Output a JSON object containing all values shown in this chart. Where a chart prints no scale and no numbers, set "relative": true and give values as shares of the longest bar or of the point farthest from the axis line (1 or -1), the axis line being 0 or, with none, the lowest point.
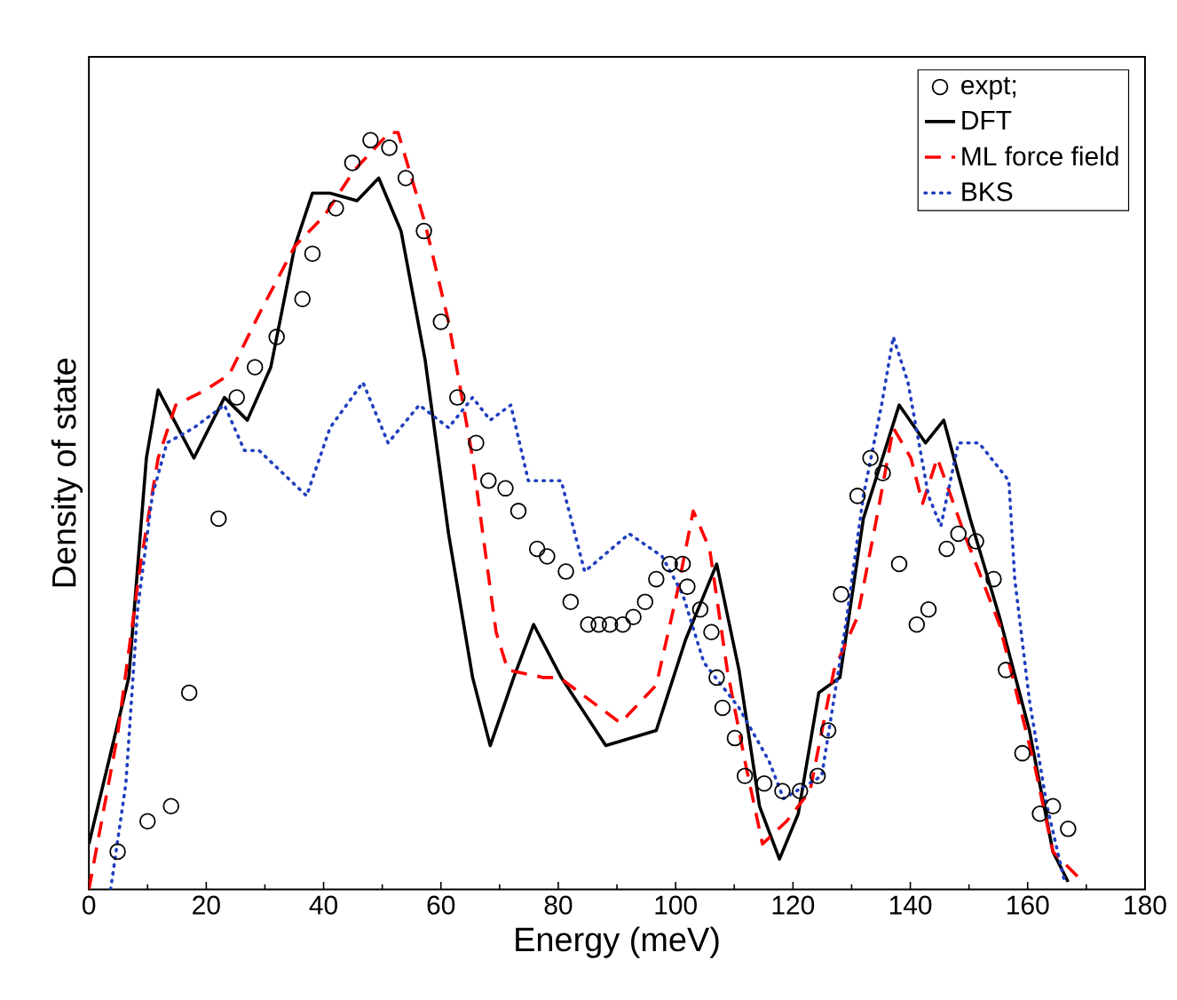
{
  "chart_data": {
    "type": "line",
    "relative": true,
    "xlabel": "Energy (meV)",
    "ylabel": "Density of state",
    "xlim": [
      0,
      180
    ],
    "xticks": [
      0,
      20,
      40,
      60,
      80,
      100,
      120,
      140,
      160,
      180
    ],
    "legend": "top right",
    "series": [
      {
        "name": "expt;",
        "type": "scatter",
        "marker": "circle",
        "color": "#000000",
        "x": [
          4.9,
          10.0,
          14.0,
          17.1,
          22.1,
          25.2,
          28.3,
          32.0,
          36.4,
          38.1,
          42.1,
          44.9,
          48.0,
          51.2,
          54.0,
          57.1,
          60.0,
          62.8,
          66.0,
          68.1,
          71.0,
          73.2,
          76.4,
          78.1,
          81.3,
          82.1,
          85.1,
          86.9,
          88.8,
          91.0,
          92.8,
          94.8,
          96.7,
          99.0,
          101.2,
          102.0,
          104.2,
          106.1,
          107.0,
          108.0,
          110.1,
          111.8,
          115.1,
          118.2,
          121.2,
          124.2,
          126.0,
          128.2,
          131.0,
          133.2,
          135.3,
          138.1,
          141.1,
          143.1,
          146.2,
          148.2,
          151.2,
          154.2,
          156.3,
          159.1,
          162.1,
          164.3,
          166.9
        ],
        "values": [
          0.05,
          0.09,
          0.11,
          0.26,
          0.49,
          0.65,
          0.69,
          0.73,
          0.78,
          0.84,
          0.9,
          0.96,
          0.99,
          0.98,
          0.94,
          0.87,
          0.75,
          0.65,
          0.59,
          0.54,
          0.53,
          0.5,
          0.45,
          0.44,
          0.42,
          0.38,
          0.35,
          0.35,
          0.35,
          0.35,
          0.36,
          0.38,
          0.41,
          0.43,
          0.43,
          0.4,
          0.37,
          0.34,
          0.28,
          0.24,
          0.2,
          0.15,
          0.14,
          0.13,
          0.13,
          0.15,
          0.21,
          0.39,
          0.52,
          0.57,
          0.55,
          0.43,
          0.35,
          0.37,
          0.45,
          0.47,
          0.46,
          0.41,
          0.29,
          0.18,
          0.1,
          0.11,
          0.08
        ]
      },
      {
        "name": "DFT",
        "type": "line",
        "line_style": "solid",
        "color": "#000000",
        "x": [
          0,
          6.8,
          9.8,
          11.8,
          17.9,
          23.1,
          27.0,
          31.0,
          35.1,
          38.1,
          41.1,
          45.7,
          49.4,
          53.2,
          57.3,
          61.3,
          65.4,
          68.4,
          72.4,
          75.8,
          80.5,
          88.1,
          96.7,
          101.7,
          107.0,
          110.8,
          114.3,
          117.7,
          120.9,
          124.4,
          128.0,
          132.0,
          138.1,
          142.6,
          145.7,
          150.2,
          155.2,
          160.3,
          164.3,
          166.9
        ],
        "values": [
          0.06,
          0.28,
          0.57,
          0.66,
          0.57,
          0.65,
          0.62,
          0.69,
          0.85,
          0.92,
          0.92,
          0.91,
          0.94,
          0.87,
          0.7,
          0.47,
          0.28,
          0.19,
          0.28,
          0.35,
          0.28,
          0.19,
          0.21,
          0.33,
          0.43,
          0.29,
          0.11,
          0.04,
          0.1,
          0.26,
          0.28,
          0.49,
          0.64,
          0.59,
          0.62,
          0.49,
          0.36,
          0.21,
          0.05,
          0.01
        ]
      },
      {
        "name": "ML force field",
        "type": "line",
        "line_style": "dashed",
        "color": "#ff0000",
        "x": [
          0,
          4.8,
          8.8,
          11.8,
          14.8,
          19.9,
          23.9,
          29.0,
          35.1,
          40.1,
          45.2,
          51.2,
          52.7,
          57.3,
          61.3,
          65.4,
          69.4,
          71.4,
          77.5,
          80.2,
          90.6,
          96.7,
          100.2,
          103.0,
          105.8,
          108.8,
          111.8,
          114.8,
          118.9,
          122.9,
          127.0,
          131.0,
          134.5,
          137.1,
          140.1,
          142.1,
          144.6,
          149.2,
          155.2,
          161.3,
          164.3,
          169.4
        ],
        "values": [
          0,
          0.2,
          0.43,
          0.57,
          0.64,
          0.66,
          0.68,
          0.76,
          0.85,
          0.89,
          0.95,
          1,
          1,
          0.88,
          0.75,
          0.57,
          0.34,
          0.29,
          0.28,
          0.28,
          0.22,
          0.27,
          0.39,
          0.5,
          0.45,
          0.29,
          0.17,
          0.06,
          0.09,
          0.13,
          0.29,
          0.36,
          0.5,
          0.61,
          0.57,
          0.51,
          0.57,
          0.47,
          0.35,
          0.16,
          0.05,
          0.01
        ]
      },
      {
        "name": "BKS",
        "type": "line",
        "line_style": "dotted",
        "color": "#1f3fbf",
        "x": [
          3.7,
          6.3,
          8.3,
          10.8,
          13.3,
          17.9,
          23.1,
          26.5,
          29.0,
          37.1,
          41.1,
          46.7,
          51.0,
          56.3,
          61.3,
          65.4,
          68.4,
          71.9,
          74.9,
          80.5,
          84.5,
          92.1,
          97.7,
          101.2,
          104.8,
          110.8,
          115.9,
          118.4,
          124.9,
          129.0,
          132.0,
          135.1,
          137.1,
          139.6,
          143.1,
          145.2,
          148.2,
          151.7,
          156.8,
          157.8,
          160.3,
          163.3,
          166.3
        ],
        "values": [
          0,
          0.14,
          0.37,
          0.52,
          0.59,
          0.61,
          0.64,
          0.58,
          0.58,
          0.52,
          0.61,
          0.67,
          0.59,
          0.64,
          0.61,
          0.65,
          0.62,
          0.64,
          0.54,
          0.54,
          0.42,
          0.47,
          0.44,
          0.39,
          0.3,
          0.24,
          0.17,
          0.12,
          0.15,
          0.35,
          0.52,
          0.64,
          0.73,
          0.67,
          0.52,
          0.48,
          0.59,
          0.59,
          0.54,
          0.41,
          0.25,
          0.11,
          0.01
        ]
      }
    ]
  }
}
